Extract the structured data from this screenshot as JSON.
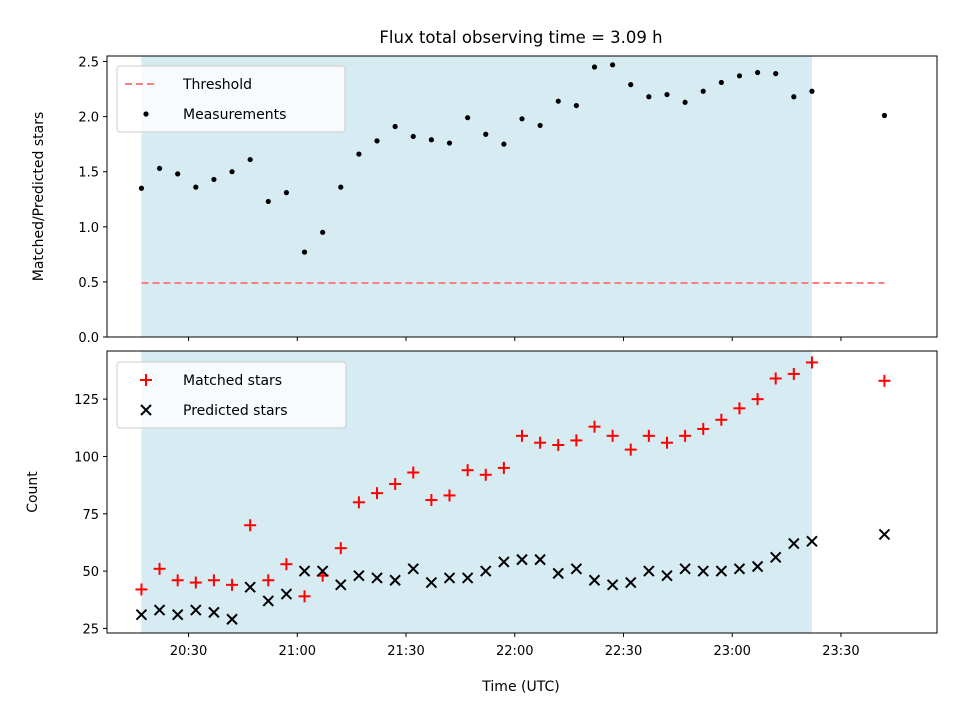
{
  "chart_data": {
    "title": "Flux total observing time = 3.09 h",
    "xlabel": "Time (UTC)",
    "x_ticks": [
      "20:30",
      "21:00",
      "21:30",
      "22:00",
      "22:30",
      "23:00",
      "23:30"
    ],
    "times": [
      "20:17",
      "20:22",
      "20:27",
      "20:32",
      "20:37",
      "20:42",
      "20:47",
      "20:52",
      "20:57",
      "21:02",
      "21:07",
      "21:12",
      "21:17",
      "21:22",
      "21:27",
      "21:32",
      "21:37",
      "21:42",
      "21:47",
      "21:52",
      "21:57",
      "22:02",
      "22:07",
      "22:12",
      "22:17",
      "22:22",
      "22:27",
      "22:32",
      "22:37",
      "22:42",
      "22:47",
      "22:52",
      "22:57",
      "23:02",
      "23:07",
      "23:12",
      "23:17",
      "23:22",
      "23:42"
    ],
    "shaded_span": [
      "20:17",
      "23:22"
    ],
    "shade_color": "#add8e6",
    "charts": [
      {
        "type": "scatter",
        "ylabel": "Matched/Predicted stars",
        "ylim": [
          0,
          2.55
        ],
        "y_ticks": [
          0.0,
          0.5,
          1.0,
          1.5,
          2.0,
          2.5
        ],
        "legend_position": "top-left",
        "threshold": {
          "name": "Threshold",
          "value": 0.49,
          "color": "#ff7f7f",
          "x_range": [
            "20:17",
            "23:42"
          ]
        },
        "series": [
          {
            "name": "Measurements",
            "marker": "dot",
            "color": "#000000",
            "values": [
              1.35,
              1.53,
              1.48,
              1.36,
              1.43,
              1.5,
              1.61,
              1.23,
              1.31,
              0.77,
              0.95,
              1.36,
              1.66,
              1.78,
              1.91,
              1.82,
              1.79,
              1.76,
              1.99,
              1.84,
              1.75,
              1.98,
              1.92,
              2.14,
              2.1,
              2.45,
              2.47,
              2.29,
              2.18,
              2.2,
              2.13,
              2.23,
              2.31,
              2.37,
              2.4,
              2.39,
              2.18,
              2.23,
              2.01
            ]
          }
        ]
      },
      {
        "type": "scatter",
        "ylabel": "Count",
        "ylim": [
          23,
          146
        ],
        "y_ticks": [
          25,
          50,
          75,
          100,
          125
        ],
        "legend_position": "top-left",
        "series": [
          {
            "name": "Matched stars",
            "marker": "plus",
            "color": "#ff0000",
            "values": [
              42,
              51,
              46,
              45,
              46,
              44,
              70,
              46,
              53,
              39,
              48,
              60,
              80,
              84,
              88,
              93,
              81,
              83,
              94,
              92,
              95,
              109,
              106,
              105,
              107,
              113,
              109,
              103,
              109,
              106,
              109,
              112,
              116,
              121,
              125,
              134,
              136,
              141,
              133
            ]
          },
          {
            "name": "Predicted stars",
            "marker": "cross",
            "color": "#000000",
            "values": [
              31,
              33,
              31,
              33,
              32,
              29,
              43,
              37,
              40,
              50,
              50,
              44,
              48,
              47,
              46,
              51,
              45,
              47,
              47,
              50,
              54,
              55,
              55,
              49,
              51,
              46,
              44,
              45,
              50,
              48,
              51,
              50,
              50,
              51,
              52,
              56,
              62,
              63,
              66
            ]
          }
        ]
      }
    ]
  }
}
